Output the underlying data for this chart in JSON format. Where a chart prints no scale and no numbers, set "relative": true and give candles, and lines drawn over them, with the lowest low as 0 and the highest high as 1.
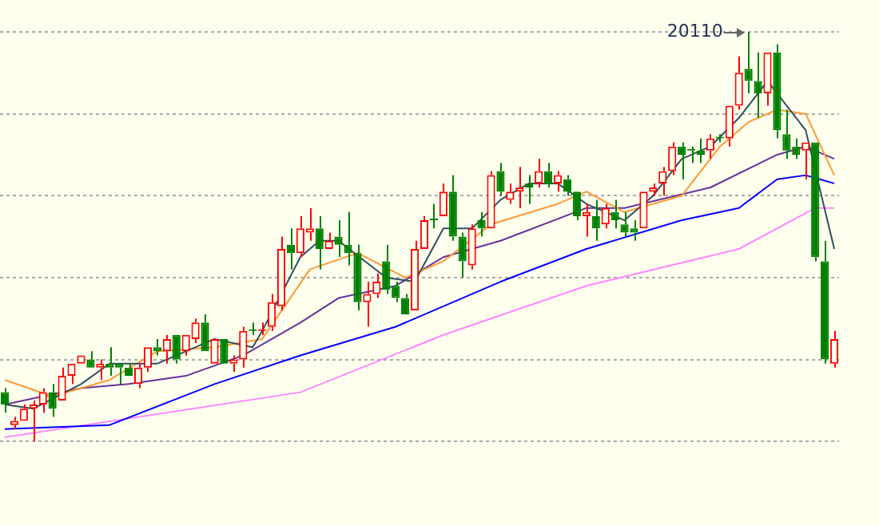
{
  "chart_data": {
    "type": "candlestick",
    "relative": true,
    "grid": "y",
    "annotations": [
      "20110"
    ],
    "categories": [
      null,
      null,
      null,
      null,
      null,
      null,
      null,
      null,
      null,
      null,
      null,
      null,
      null,
      null,
      null,
      null,
      null,
      null,
      null,
      null,
      null,
      null,
      null,
      null,
      null,
      null,
      null,
      null,
      null,
      null,
      null,
      null,
      null,
      null,
      null,
      null,
      null,
      null,
      null,
      null,
      null,
      null,
      null,
      null,
      null,
      null,
      null,
      null,
      null,
      null,
      null,
      null,
      null,
      null,
      null,
      null,
      null,
      null,
      null,
      null,
      null,
      null,
      null,
      null,
      null,
      null,
      null,
      null,
      null,
      null,
      null,
      null,
      null,
      null,
      null,
      null,
      null,
      null,
      null,
      null,
      null,
      null,
      null,
      null,
      null,
      null,
      null,
      null
    ],
    "ohlc": [
      [
        0.12,
        0.13,
        0.07,
        0.09
      ],
      [
        0.04,
        0.06,
        0.03,
        0.05
      ],
      [
        0.05,
        0.09,
        0.05,
        0.08
      ],
      [
        0.08,
        0.1,
        0,
        0.09
      ],
      [
        0.09,
        0.13,
        0.07,
        0.12
      ],
      [
        0.12,
        0.14,
        0.06,
        0.08
      ],
      [
        0.1,
        0.18,
        0.1,
        0.16
      ],
      [
        0.16,
        0.19,
        0.14,
        0.19
      ],
      [
        0.19,
        0.21,
        0.19,
        0.21
      ],
      [
        0.2,
        0.22,
        0.18,
        0.18
      ],
      [
        0.18,
        0.2,
        0.15,
        0.19
      ],
      [
        0.19,
        0.23,
        0.16,
        0.18
      ],
      [
        0.19,
        0.19,
        0.14,
        0.18
      ],
      [
        0.18,
        0.19,
        0.16,
        0.16
      ],
      [
        0.14,
        0.19,
        0.13,
        0.18
      ],
      [
        0.18,
        0.23,
        0.17,
        0.23
      ],
      [
        0.23,
        0.25,
        0.21,
        0.22
      ],
      [
        0.22,
        0.26,
        0.19,
        0.25
      ],
      [
        0.26,
        0.26,
        0.19,
        0.2
      ],
      [
        0.22,
        0.26,
        0.21,
        0.26
      ],
      [
        0.25,
        0.3,
        0.24,
        0.29
      ],
      [
        0.29,
        0.31,
        0.22,
        0.22
      ],
      [
        0.19,
        0.25,
        0.19,
        0.25
      ],
      [
        0.25,
        0.25,
        0.19,
        0.19
      ],
      [
        0.19,
        0.21,
        0.17,
        0.2
      ],
      [
        0.2,
        0.28,
        0.18,
        0.27
      ],
      [
        0.27,
        0.29,
        0.26,
        0.27
      ],
      [
        0.27,
        0.29,
        0.26,
        0.27
      ],
      [
        0.28,
        0.36,
        0.27,
        0.34
      ],
      [
        0.33,
        0.5,
        0.32,
        0.47
      ],
      [
        0.48,
        0.52,
        0.42,
        0.46
      ],
      [
        0.46,
        0.55,
        0.45,
        0.52
      ],
      [
        0.51,
        0.57,
        0.49,
        0.52
      ],
      [
        0.52,
        0.55,
        0.42,
        0.47
      ],
      [
        0.47,
        0.51,
        0.47,
        0.49
      ],
      [
        0.5,
        0.54,
        0.45,
        0.48
      ],
      [
        0.48,
        0.56,
        0.43,
        0.46
      ],
      [
        0.46,
        0.48,
        0.32,
        0.34
      ],
      [
        0.34,
        0.39,
        0.28,
        0.36
      ],
      [
        0.36,
        0.41,
        0.35,
        0.39
      ],
      [
        0.44,
        0.48,
        0.36,
        0.37
      ],
      [
        0.38,
        0.39,
        0.34,
        0.35
      ],
      [
        0.35,
        0.36,
        0.31,
        0.31
      ],
      [
        0.32,
        0.49,
        0.32,
        0.47
      ],
      [
        0.47,
        0.55,
        0.47,
        0.54
      ],
      [
        0.54,
        0.58,
        0.52,
        0.54
      ],
      [
        0.55,
        0.63,
        0.55,
        0.61
      ],
      [
        0.61,
        0.65,
        0.49,
        0.5
      ],
      [
        0.5,
        0.51,
        0.4,
        0.44
      ],
      [
        0.43,
        0.53,
        0.42,
        0.52
      ],
      [
        0.54,
        0.56,
        0.5,
        0.52
      ],
      [
        0.52,
        0.66,
        0.52,
        0.65
      ],
      [
        0.66,
        0.68,
        0.6,
        0.61
      ],
      [
        0.59,
        0.63,
        0.58,
        0.61
      ],
      [
        0.61,
        0.67,
        0.57,
        0.62
      ],
      [
        0.63,
        0.65,
        0.58,
        0.62
      ],
      [
        0.63,
        0.69,
        0.62,
        0.66
      ],
      [
        0.66,
        0.68,
        0.62,
        0.63
      ],
      [
        0.63,
        0.66,
        0.61,
        0.65
      ],
      [
        0.64,
        0.65,
        0.6,
        0.61
      ],
      [
        0.61,
        0.61,
        0.54,
        0.55
      ],
      [
        0.55,
        0.58,
        0.5,
        0.56
      ],
      [
        0.55,
        0.59,
        0.49,
        0.52
      ],
      [
        0.53,
        0.58,
        0.52,
        0.57
      ],
      [
        0.56,
        0.59,
        0.52,
        0.54
      ],
      [
        0.53,
        0.56,
        0.5,
        0.51
      ],
      [
        0.52,
        0.54,
        0.49,
        0.51
      ],
      [
        0.52,
        0.61,
        0.52,
        0.61
      ],
      [
        0.61,
        0.63,
        0.6,
        0.62
      ],
      [
        0.63,
        0.67,
        0.6,
        0.66
      ],
      [
        0.66,
        0.73,
        0.65,
        0.72
      ],
      [
        0.72,
        0.73,
        0.64,
        0.7
      ],
      [
        0.71,
        0.72,
        0.68,
        0.71
      ],
      [
        0.71,
        0.74,
        0.68,
        0.7
      ],
      [
        0.71,
        0.75,
        0.69,
        0.74
      ],
      [
        0.74,
        0.75,
        0.73,
        0.74
      ],
      [
        0.74,
        0.82,
        0.72,
        0.82
      ],
      [
        0.82,
        0.94,
        0.81,
        0.9
      ],
      [
        0.91,
        1,
        0.85,
        0.88
      ],
      [
        0.88,
        0.95,
        0.79,
        0.85
      ],
      [
        0.85,
        0.95,
        0.82,
        0.95
      ],
      [
        0.95,
        0.97,
        0.74,
        0.76
      ],
      [
        0.75,
        0.81,
        0.69,
        0.71
      ],
      [
        0.72,
        0.74,
        0.69,
        0.7
      ],
      [
        0.71,
        0.73,
        0.64,
        0.73
      ],
      [
        0.73,
        0.73,
        0.44,
        0.45
      ],
      [
        0.44,
        0.49,
        0.19,
        0.2
      ],
      [
        0.19,
        0.27,
        0.18,
        0.25
      ]
    ],
    "colors": [
      "#008000",
      "#ff0000",
      "#ff0000",
      "#ff0000",
      "#ff0000",
      "#008000",
      "#ff0000",
      "#ff0000",
      "#ff0000",
      "#008000",
      "#ff0000",
      "#008000",
      "#008000",
      "#008000",
      "#ff0000",
      "#ff0000",
      "#008000",
      "#ff0000",
      "#008000",
      "#ff0000",
      "#ff0000",
      "#008000",
      "#ff0000",
      "#008000",
      "#ff0000",
      "#ff0000",
      "#008000",
      "#ff0000",
      "#ff0000",
      "#ff0000",
      "#008000",
      "#ff0000",
      "#ff0000",
      "#008000",
      "#ff0000",
      "#008000",
      "#008000",
      "#008000",
      "#ff0000",
      "#ff0000",
      "#008000",
      "#008000",
      "#008000",
      "#ff0000",
      "#ff0000",
      "#008000",
      "#ff0000",
      "#008000",
      "#008000",
      "#ff0000",
      "#008000",
      "#ff0000",
      "#008000",
      "#ff0000",
      "#ff0000",
      "#008000",
      "#ff0000",
      "#008000",
      "#ff0000",
      "#008000",
      "#008000",
      "#ff0000",
      "#008000",
      "#ff0000",
      "#008000",
      "#008000",
      "#008000",
      "#ff0000",
      "#ff0000",
      "#ff0000",
      "#ff0000",
      "#008000",
      "#008000",
      "#008000",
      "#ff0000",
      "#008000",
      "#ff0000",
      "#ff0000",
      "#008000",
      "#008000",
      "#ff0000",
      "#008000",
      "#008000",
      "#008000",
      "#ff0000",
      "#008000",
      "#008000",
      "#ff0000"
    ],
    "series": [
      {
        "type": "line",
        "color": "#2f4f5f",
        "values": [
          0.09,
          null,
          null,
          0.08,
          null,
          null,
          null,
          null,
          0.14,
          null,
          null,
          0.19,
          null,
          null,
          null,
          null,
          0.19,
          null,
          null,
          null,
          null,
          null,
          0.25,
          null,
          null,
          null,
          0.23,
          0.27,
          null,
          null,
          null,
          0.45,
          null,
          0.49,
          null,
          0.49,
          null,
          null,
          null,
          null,
          0.4,
          null,
          null,
          0.39,
          null,
          null,
          0.52,
          null,
          null,
          0.52,
          null,
          null,
          0.59,
          null,
          null,
          0.63,
          null,
          null,
          0.63,
          null,
          null,
          0.58,
          null,
          null,
          null,
          0.54,
          null,
          null,
          0.6,
          null,
          null,
          0.69,
          null,
          null,
          0.72,
          null,
          null,
          0.79,
          null,
          null,
          0.88,
          null,
          0.82,
          null,
          0.76,
          null,
          null,
          0.47
        ]
      },
      {
        "type": "line",
        "color": "#ff9933",
        "values": [
          0.15,
          null,
          null,
          null,
          null,
          0.11,
          null,
          null,
          null,
          null,
          null,
          0.15,
          null,
          null,
          null,
          null,
          0.22,
          null,
          null,
          null,
          null,
          null,
          0.23,
          null,
          null,
          null,
          null,
          0.25,
          null,
          null,
          null,
          null,
          0.42,
          null,
          null,
          null,
          null,
          0.46,
          null,
          null,
          null,
          null,
          0.4,
          null,
          null,
          null,
          0.44,
          null,
          null,
          null,
          null,
          0.53,
          null,
          null,
          null,
          null,
          null,
          null,
          0.58,
          null,
          null,
          0.61,
          null,
          null,
          null,
          0.56,
          null,
          null,
          null,
          null,
          null,
          0.6,
          null,
          null,
          null,
          0.72,
          null,
          null,
          0.78,
          null,
          null,
          0.81,
          null,
          null,
          0.8,
          null,
          null,
          0.65
        ]
      },
      {
        "type": "line",
        "color": "#663399",
        "values": [
          0.09,
          null,
          null,
          null,
          null,
          null,
          null,
          null,
          0.13,
          null,
          null,
          null,
          null,
          0.14,
          null,
          null,
          null,
          null,
          null,
          0.16,
          null,
          null,
          null,
          null,
          null,
          0.21,
          null,
          null,
          null,
          null,
          null,
          0.29,
          null,
          null,
          null,
          0.35,
          null,
          null,
          null,
          null,
          null,
          0.38,
          null,
          null,
          null,
          null,
          0.45,
          null,
          null,
          null,
          null,
          null,
          0.49,
          null,
          null,
          null,
          null,
          null,
          null,
          null,
          null,
          0.57,
          null,
          null,
          null,
          0.57,
          null,
          null,
          null,
          null,
          null,
          null,
          null,
          null,
          0.62,
          null,
          null,
          null,
          null,
          null,
          null,
          0.7,
          null,
          null,
          0.72,
          null,
          null,
          0.69
        ]
      },
      {
        "type": "line",
        "color": "#0000ff",
        "values": [
          0.03,
          null,
          null,
          null,
          null,
          null,
          null,
          null,
          null,
          null,
          null,
          0.04,
          null,
          null,
          null,
          null,
          null,
          null,
          null,
          null,
          null,
          null,
          0.14,
          null,
          null,
          null,
          null,
          null,
          null,
          null,
          null,
          0.21,
          null,
          null,
          null,
          null,
          null,
          null,
          null,
          null,
          null,
          0.28,
          null,
          null,
          null,
          null,
          null,
          null,
          null,
          null,
          null,
          null,
          0.39,
          null,
          null,
          null,
          null,
          null,
          null,
          null,
          null,
          0.47,
          null,
          null,
          null,
          null,
          null,
          null,
          null,
          null,
          null,
          0.54,
          null,
          null,
          null,
          null,
          null,
          0.57,
          null,
          null,
          null,
          0.64,
          null,
          null,
          0.65,
          null,
          null,
          0.63
        ]
      },
      {
        "type": "line",
        "color": "#ff88ff",
        "values": [
          0.01,
          null,
          null,
          null,
          null,
          null,
          null,
          null,
          null,
          null,
          null,
          null,
          null,
          null,
          null,
          null,
          null,
          null,
          null,
          null,
          null,
          null,
          null,
          null,
          null,
          null,
          null,
          null,
          null,
          null,
          null,
          0.12,
          null,
          null,
          null,
          null,
          null,
          null,
          null,
          null,
          null,
          null,
          null,
          null,
          null,
          null,
          0.26,
          null,
          null,
          null,
          null,
          null,
          null,
          null,
          null,
          null,
          null,
          null,
          null,
          null,
          null,
          0.38,
          null,
          null,
          null,
          null,
          null,
          null,
          null,
          null,
          null,
          null,
          null,
          null,
          null,
          null,
          null,
          0.47,
          null,
          null,
          null,
          null,
          null,
          null,
          null,
          0.57,
          null,
          0.57
        ]
      }
    ]
  }
}
